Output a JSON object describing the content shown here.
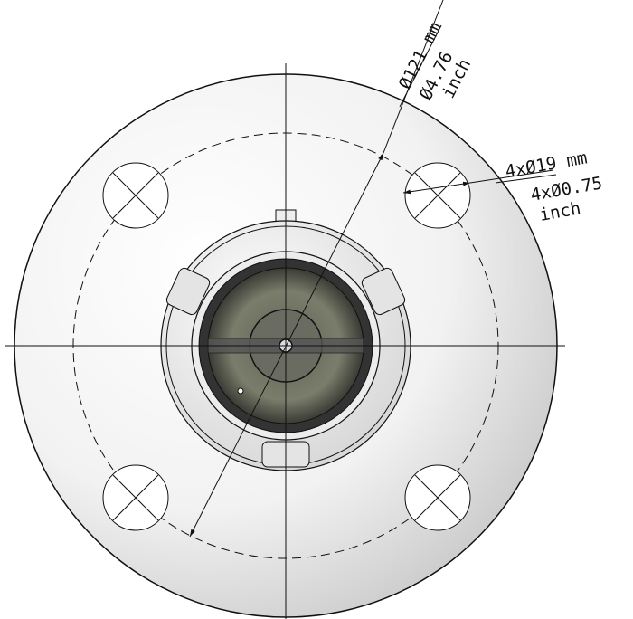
{
  "dimensions": [
    {
      "metric": "Ø121 mm",
      "imperial": "Ø4.76",
      "unit": "inch"
    },
    {
      "metric": "4xØ19 mm",
      "imperial": "4xØ0.75",
      "unit": "inch"
    }
  ]
}
